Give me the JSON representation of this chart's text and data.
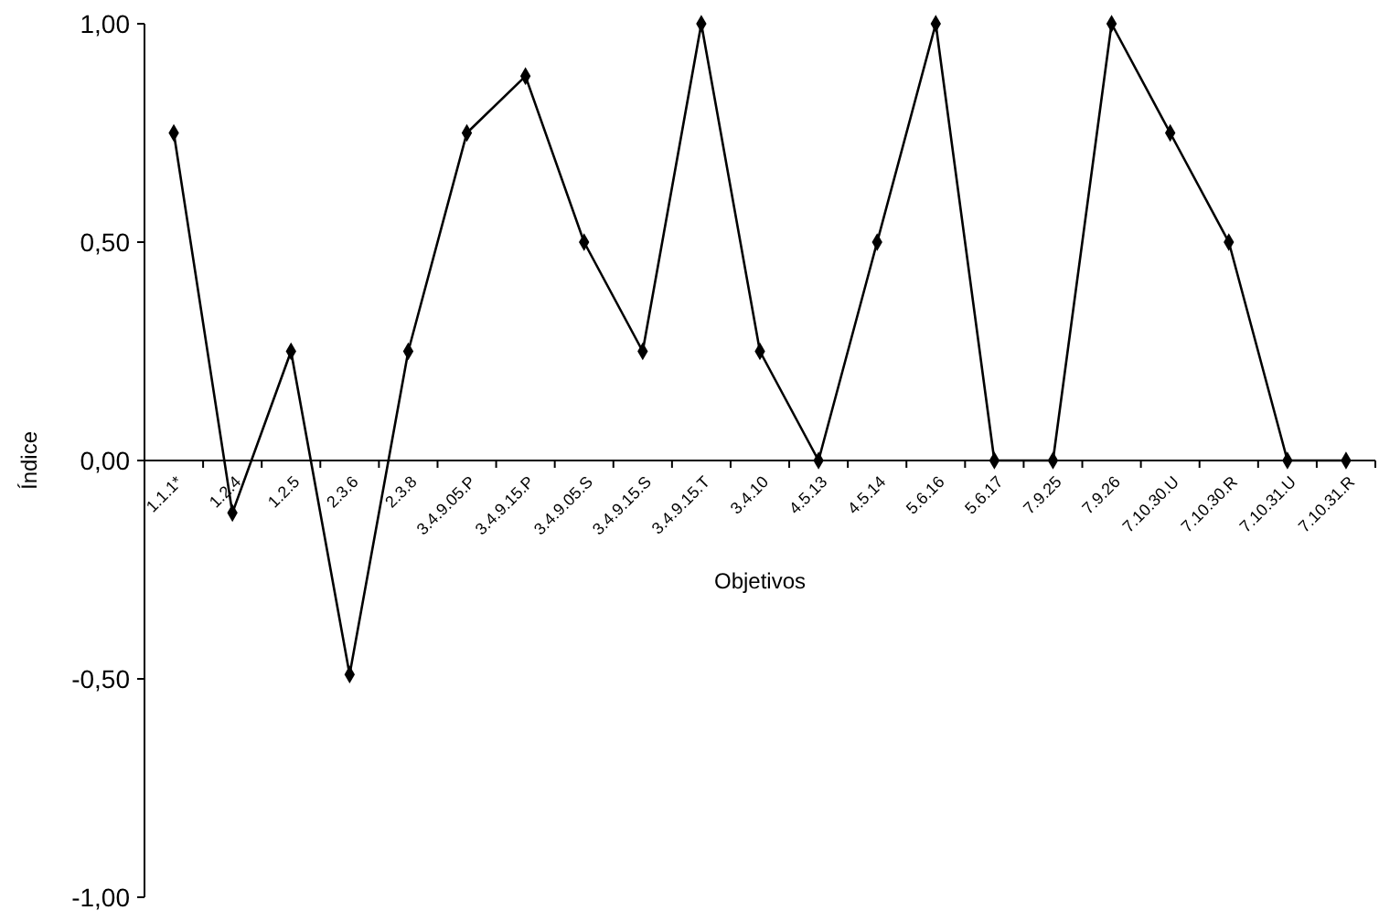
{
  "chart_data": {
    "type": "line",
    "xlabel": "Objetivos",
    "ylabel": "Índice",
    "categories": [
      "1.1.1*",
      "1.2.4",
      "1.2.5",
      "2.3.6",
      "2.3.8",
      "3.4.9.05.P",
      "3.4.9.15.P",
      "3.4.9.05.S",
      "3.4.9.15.S",
      "3.4.9.15.T",
      "3.4.10",
      "4.5.13",
      "4.5.14",
      "5.6.16",
      "5.6.17",
      "7.9.25",
      "7.9.26",
      "7.10.30.U",
      "7.10.30.R",
      "7.10.31.U",
      "7.10.31.R"
    ],
    "series": [
      {
        "color": "#000000",
        "values": [
          0.75,
          -0.12,
          0.25,
          -0.49,
          0.25,
          0.75,
          0.88,
          0.5,
          0.25,
          1,
          0.25,
          0,
          0.5,
          1,
          0,
          0,
          1,
          0.75,
          0.5,
          0,
          0
        ]
      }
    ],
    "ylim": [
      -1,
      1
    ],
    "yticks": [
      {
        "value": -1,
        "label": "-1,00"
      },
      {
        "value": -0.5,
        "label": "-0,50"
      },
      {
        "value": 0,
        "label": "0,00"
      },
      {
        "value": 0.5,
        "label": "0,50"
      },
      {
        "value": 1,
        "label": "1,00"
      }
    ],
    "grid": false,
    "marker": "diamond",
    "line_style": "solid"
  }
}
